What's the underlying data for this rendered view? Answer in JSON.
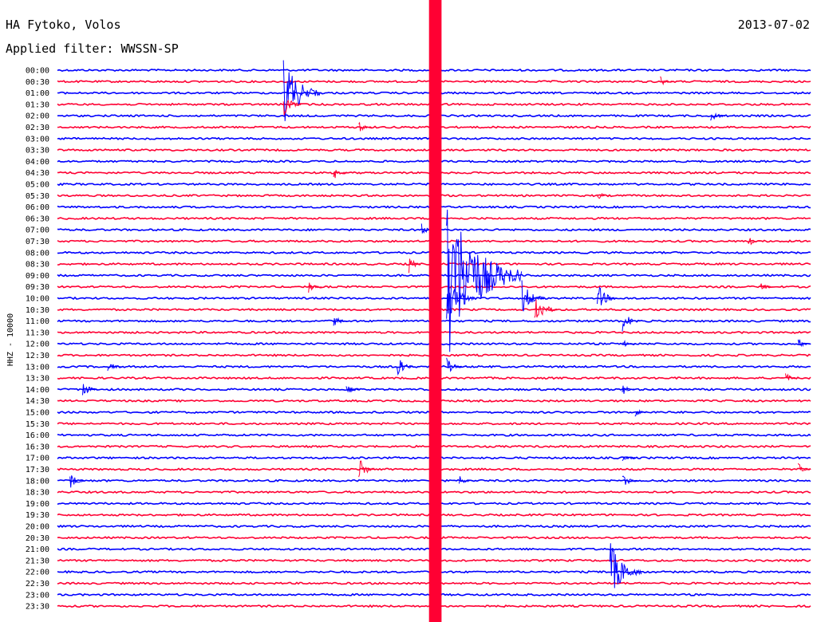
{
  "header": {
    "station": "HA Fytoko, Volos",
    "filter": "Applied filter: WWSSN-SP",
    "date": "2013-07-02"
  },
  "chart_data": {
    "type": "line",
    "title": "HA Fytoko, Volos",
    "subtitle": "Applied filter: WWSSN-SP",
    "ylabel": "HHZ - 10000",
    "time_labels": [
      "00:00",
      "00:30",
      "01:00",
      "01:30",
      "02:00",
      "02:30",
      "03:00",
      "03:30",
      "04:00",
      "04:30",
      "05:00",
      "05:30",
      "06:00",
      "06:30",
      "07:00",
      "07:30",
      "08:00",
      "08:30",
      "09:00",
      "09:30",
      "10:00",
      "10:30",
      "11:00",
      "11:30",
      "12:00",
      "12:30",
      "13:00",
      "13:30",
      "14:00",
      "14:30",
      "15:00",
      "15:30",
      "16:00",
      "16:30",
      "17:00",
      "17:30",
      "18:00",
      "18:30",
      "19:00",
      "19:30",
      "20:00",
      "20:30",
      "21:00",
      "21:30",
      "22:00",
      "22:30",
      "23:00",
      "23:30"
    ],
    "trace_colors": [
      "#0000ff",
      "#ff0033"
    ],
    "minutes_per_line": 30,
    "saturated_interval_minutes": [
      14.8,
      15.3
    ],
    "events": [
      {
        "line": 1,
        "minute": 24.0,
        "amp": 1.0
      },
      {
        "line": 2,
        "minute": 9.0,
        "amp": 6.0
      },
      {
        "line": 3,
        "minute": 9.0,
        "amp": 2.0
      },
      {
        "line": 4,
        "minute": 26.0,
        "amp": 1.5
      },
      {
        "line": 5,
        "minute": 12.0,
        "amp": 1.0
      },
      {
        "line": 9,
        "minute": 11.0,
        "amp": 1.2
      },
      {
        "line": 11,
        "minute": 21.5,
        "amp": 1.0
      },
      {
        "line": 14,
        "minute": 14.5,
        "amp": 1.0
      },
      {
        "line": 15,
        "minute": 27.5,
        "amp": 1.0
      },
      {
        "line": 17,
        "minute": 14.0,
        "amp": 1.5
      },
      {
        "line": 18,
        "minute": 15.5,
        "amp": 14.0
      },
      {
        "line": 19,
        "minute": 10.0,
        "amp": 1.0
      },
      {
        "line": 19,
        "minute": 28.0,
        "amp": 1.0
      },
      {
        "line": 20,
        "minute": 15.5,
        "amp": 4.0
      },
      {
        "line": 20,
        "minute": 18.5,
        "amp": 3.0
      },
      {
        "line": 20,
        "minute": 21.5,
        "amp": 2.5
      },
      {
        "line": 21,
        "minute": 19.0,
        "amp": 3.0
      },
      {
        "line": 22,
        "minute": 11.0,
        "amp": 1.2
      },
      {
        "line": 22,
        "minute": 22.5,
        "amp": 2.0
      },
      {
        "line": 24,
        "minute": 22.5,
        "amp": 1.0
      },
      {
        "line": 24,
        "minute": 29.5,
        "amp": 1.0
      },
      {
        "line": 26,
        "minute": 2.0,
        "amp": 1.2
      },
      {
        "line": 26,
        "minute": 13.5,
        "amp": 2.0
      },
      {
        "line": 26,
        "minute": 15.5,
        "amp": 1.5
      },
      {
        "line": 27,
        "minute": 29.0,
        "amp": 1.0
      },
      {
        "line": 28,
        "minute": 1.0,
        "amp": 1.5
      },
      {
        "line": 28,
        "minute": 11.5,
        "amp": 1.2
      },
      {
        "line": 28,
        "minute": 22.5,
        "amp": 1.0
      },
      {
        "line": 30,
        "minute": 23.0,
        "amp": 1.0
      },
      {
        "line": 34,
        "minute": 22.5,
        "amp": 1.0
      },
      {
        "line": 35,
        "minute": 12.0,
        "amp": 2.0
      },
      {
        "line": 35,
        "minute": 29.5,
        "amp": 1.0
      },
      {
        "line": 36,
        "minute": 0.5,
        "amp": 1.5
      },
      {
        "line": 36,
        "minute": 16.0,
        "amp": 1.0
      },
      {
        "line": 36,
        "minute": 22.5,
        "amp": 1.5
      },
      {
        "line": 44,
        "minute": 22.0,
        "amp": 5.0
      }
    ]
  }
}
